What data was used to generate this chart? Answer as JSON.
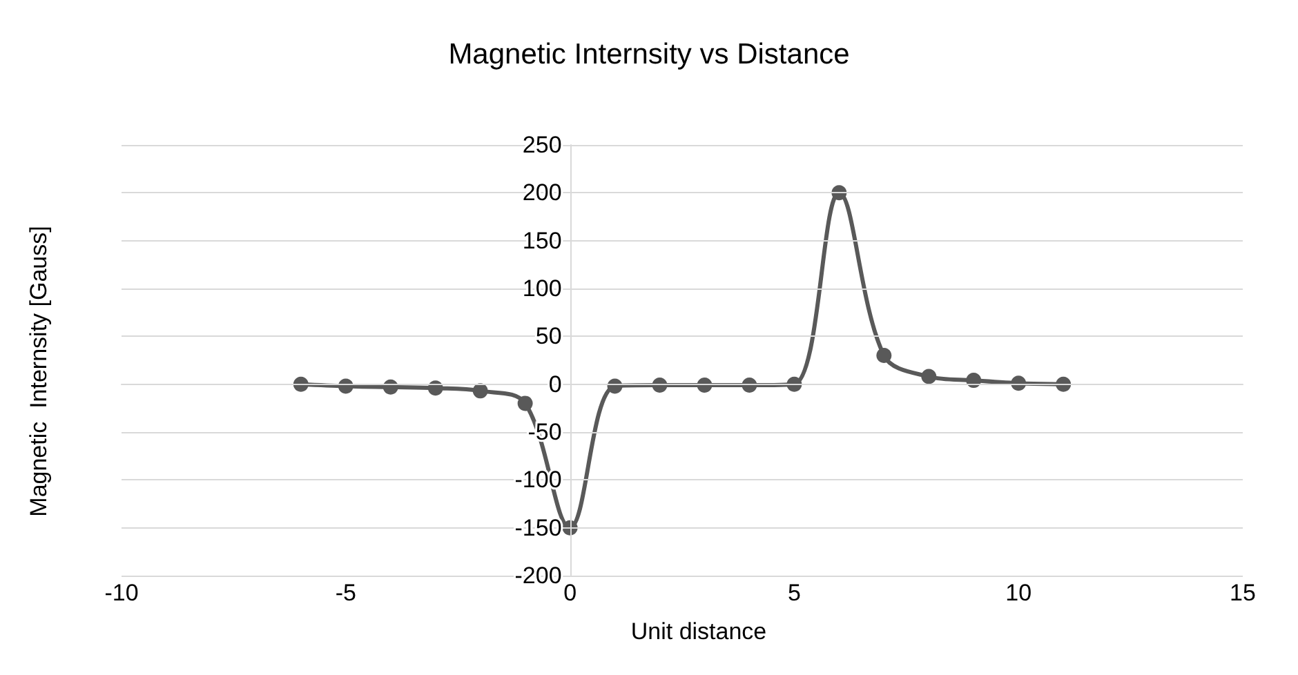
{
  "chart_data": {
    "type": "line",
    "title": "Magnetic Internsity vs Distance",
    "xlabel": "Unit distance",
    "ylabel": "Magnetic  Internsity [Gauss]",
    "x": [
      -6,
      -5,
      -4,
      -3,
      -2,
      -1,
      0,
      1,
      2,
      3,
      4,
      5,
      6,
      7,
      8,
      9,
      10,
      11
    ],
    "series": [
      {
        "color": "#595959",
        "values": [
          0,
          -2,
          -3,
          -4,
          -7,
          -20,
          -150,
          -2,
          -1,
          -1,
          -1,
          0,
          200,
          30,
          8,
          4,
          1,
          0
        ]
      }
    ],
    "xlim": [
      -10,
      15
    ],
    "xticks": [
      -10,
      -5,
      0,
      5,
      10,
      15
    ],
    "ylim": [
      -200,
      250
    ],
    "yticks": [
      -200,
      -150,
      -100,
      -50,
      0,
      50,
      100,
      150,
      200,
      250
    ],
    "grid": "y",
    "marker": "circle",
    "line_style": "solid"
  }
}
